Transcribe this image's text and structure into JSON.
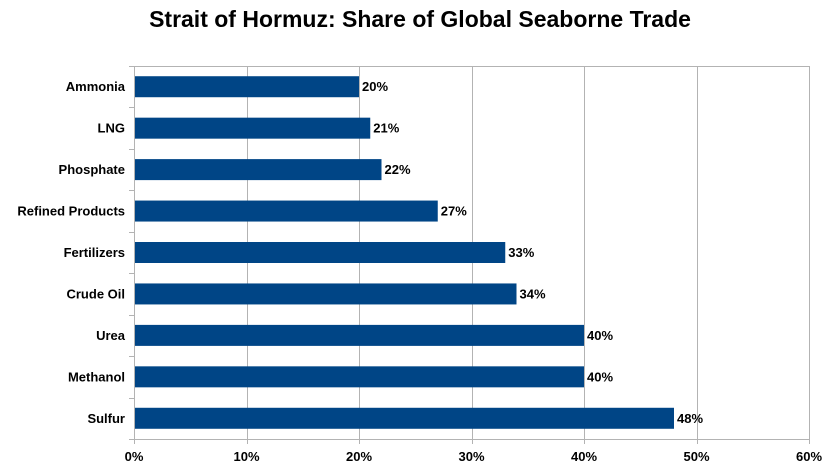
{
  "chart_data": {
    "type": "bar",
    "orientation": "horizontal",
    "title": "Strait of Hormuz: Share of Global Seaborne Trade",
    "categories": [
      "Ammonia",
      "LNG",
      "Phosphate",
      "Refined Products",
      "Fertilizers",
      "Crude Oil",
      "Urea",
      "Methanol",
      "Sulfur"
    ],
    "values": [
      20,
      21,
      22,
      27,
      33,
      34,
      40,
      40,
      48
    ],
    "value_labels": [
      "20%",
      "21%",
      "22%",
      "27%",
      "33%",
      "34%",
      "40%",
      "40%",
      "48%"
    ],
    "xlim": [
      0,
      60
    ],
    "x_ticks": [
      0,
      10,
      20,
      30,
      40,
      50,
      60
    ],
    "x_tick_labels": [
      "0%",
      "10%",
      "20%",
      "30%",
      "40%",
      "50%",
      "60%"
    ],
    "xlabel": "",
    "ylabel": "",
    "grid": "vertical",
    "legend": "none",
    "bar_color": "#004586"
  }
}
